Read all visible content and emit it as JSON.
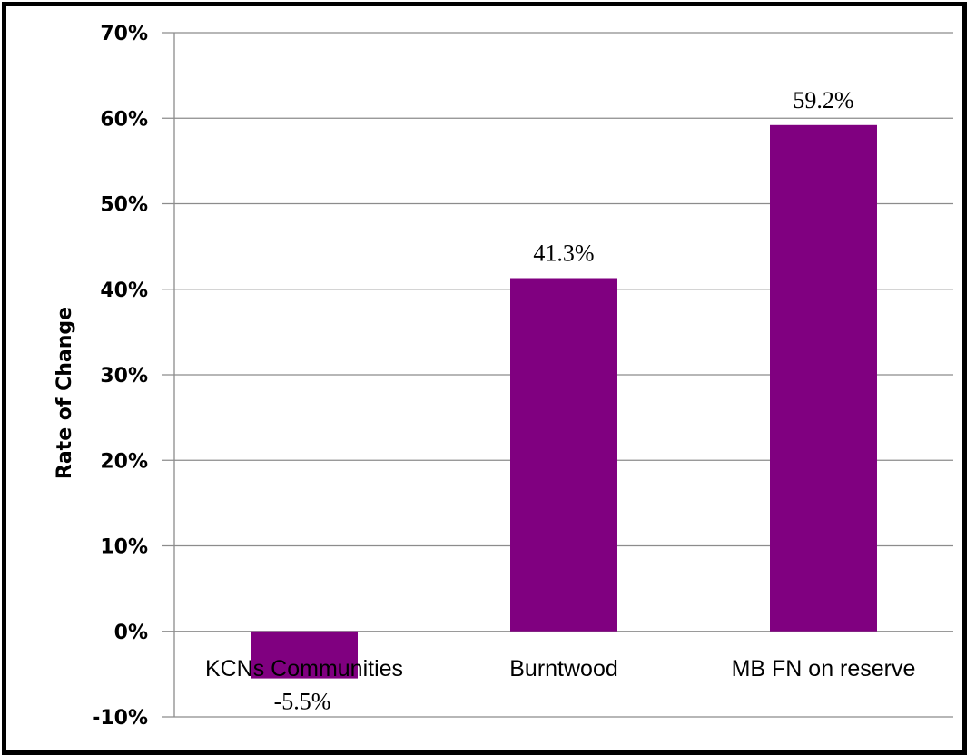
{
  "chart_data": {
    "type": "bar",
    "title": "",
    "xlabel": "",
    "ylabel": "Rate of Change",
    "categories": [
      "KCNs Communities",
      "Burntwood",
      "MB FN on reserve"
    ],
    "values": [
      -5.5,
      41.3,
      59.2
    ],
    "data_labels": [
      "-5.5%",
      "41.3%",
      "59.2%"
    ],
    "yticks": [
      -10,
      0,
      10,
      20,
      30,
      40,
      50,
      60,
      70
    ],
    "ytick_labels": [
      "-10%",
      "0%",
      "10%",
      "20%",
      "30%",
      "40%",
      "50%",
      "60%",
      "70%"
    ],
    "ylim": [
      -10,
      70
    ],
    "grid": true,
    "legend": "none",
    "bar_color": "#800080"
  }
}
